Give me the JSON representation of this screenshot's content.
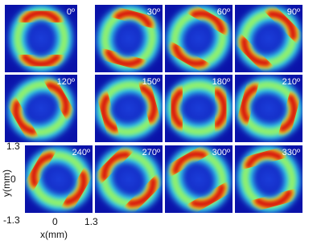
{
  "panels": [
    "0º",
    "30º",
    "60º",
    "90º",
    "120º",
    "150º",
    "180º",
    "210º",
    "240º",
    "270º",
    "300º",
    "330º"
  ],
  "axes": {
    "ylabel": "y(mm)",
    "xlabel": "x(mm)",
    "yticks": [
      "1.3",
      "0",
      "-1.3"
    ],
    "xticks": [
      "0",
      "1.3"
    ]
  }
}
